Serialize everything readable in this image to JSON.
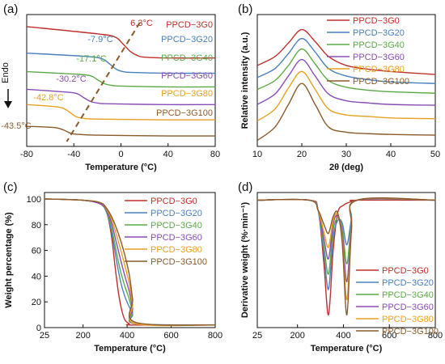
{
  "figure": {
    "colors": [
      "#c0302a",
      "#4a80c0",
      "#5caa46",
      "#8a4db5",
      "#e8a020",
      "#8b5a2b"
    ],
    "endo_label": "Endo"
  },
  "chart_data": [
    {
      "panel": "(a)",
      "type": "line",
      "xlabel": "Temperature (°C)",
      "ylabel": "",
      "xlim": [
        -80,
        80
      ],
      "xticks": [
        "-80",
        "-40",
        "0",
        "40",
        "80"
      ],
      "y_ticks_shown": false,
      "series": [
        {
          "name": "PPCD−3G0",
          "x": [
            -80,
            -20,
            -5,
            2,
            8,
            14,
            20,
            40,
            80
          ],
          "y": [
            8.85,
            8.4,
            8.2,
            7.75,
            7.3,
            7.05,
            6.95,
            6.9,
            6.9
          ]
        },
        {
          "name": "PPCD−3G20",
          "x": [
            -80,
            -30,
            -16,
            -10,
            -4,
            2,
            10,
            40,
            80
          ],
          "y": [
            7.2,
            7.0,
            6.85,
            6.55,
            6.2,
            6.05,
            6.0,
            5.95,
            5.95
          ]
        },
        {
          "name": "PPCD−3G40",
          "x": [
            -80,
            -40,
            -26,
            -20,
            -14,
            -8,
            0,
            40,
            80
          ],
          "y": [
            6.05,
            5.9,
            5.8,
            5.55,
            5.3,
            5.2,
            5.15,
            5.1,
            5.1
          ]
        },
        {
          "name": "PPCD−3G60",
          "x": [
            -80,
            -50,
            -38,
            -32,
            -26,
            -20,
            -10,
            40,
            80
          ],
          "y": [
            4.95,
            4.8,
            4.7,
            4.45,
            4.2,
            4.1,
            4.05,
            4.0,
            4.0
          ]
        },
        {
          "name": "PPCD−3G80",
          "x": [
            -80,
            -60,
            -50,
            -44,
            -38,
            -32,
            -20,
            40,
            80
          ],
          "y": [
            4.0,
            3.9,
            3.8,
            3.55,
            3.25,
            3.15,
            3.1,
            3.05,
            3.05
          ]
        },
        {
          "name": "PPCD−3G100",
          "x": [
            -80,
            -62,
            -54,
            -48,
            -42,
            -36,
            -20,
            40,
            80
          ],
          "y": [
            2.65,
            2.6,
            2.55,
            2.4,
            2.2,
            2.15,
            2.1,
            2.05,
            2.05
          ]
        }
      ],
      "annotations": [
        "6.3°C",
        "-7.9°C",
        "-17.1°C",
        "-30.2°C",
        "-42.8°C",
        "-43.5°C"
      ],
      "legend_placement": "inline-right"
    },
    {
      "panel": "(b)",
      "type": "line",
      "xlabel": "2θ (deg)",
      "ylabel": "Relative intensity (a.u.)",
      "xlim": [
        10,
        50
      ],
      "xticks": [
        "10",
        "20",
        "30",
        "40",
        "50"
      ],
      "y_ticks_shown": false,
      "series": [
        {
          "name": "PPCD−3G0",
          "x": [
            10,
            14,
            17,
            20,
            23,
            26,
            30,
            35,
            40,
            50
          ],
          "y": [
            7.6,
            8.2,
            9.1,
            10.0,
            9.2,
            8.2,
            7.6,
            7.35,
            7.2,
            7.0
          ]
        },
        {
          "name": "PPCD−3G20",
          "x": [
            10,
            14,
            17,
            20,
            23,
            26,
            30,
            35,
            40,
            50
          ],
          "y": [
            6.8,
            7.4,
            8.4,
            9.4,
            8.5,
            7.4,
            6.9,
            6.65,
            6.5,
            6.4
          ]
        },
        {
          "name": "PPCD−3G40",
          "x": [
            10,
            14,
            17,
            20,
            23,
            26,
            30,
            35,
            40,
            50
          ],
          "y": [
            6.0,
            6.6,
            7.6,
            8.7,
            7.7,
            6.6,
            6.15,
            5.95,
            5.85,
            5.75
          ]
        },
        {
          "name": "PPCD−3G60",
          "x": [
            10,
            14,
            17,
            20,
            23,
            26,
            30,
            35,
            40,
            50
          ],
          "y": [
            5.0,
            5.7,
            6.9,
            8.0,
            6.9,
            5.7,
            5.25,
            5.1,
            5.0,
            4.95
          ]
        },
        {
          "name": "PPCD−3G80",
          "x": [
            10,
            14,
            17,
            20,
            23,
            26,
            30,
            35,
            40,
            50
          ],
          "y": [
            3.9,
            4.7,
            6.1,
            7.2,
            6.0,
            4.7,
            4.3,
            4.2,
            4.1,
            4.05
          ]
        },
        {
          "name": "PPCD−3G100",
          "x": [
            10,
            14,
            17,
            20,
            23,
            26,
            30,
            35,
            40,
            50
          ],
          "y": [
            2.6,
            3.5,
            5.0,
            6.4,
            5.0,
            3.5,
            3.15,
            3.05,
            3.0,
            2.95
          ]
        }
      ],
      "legend_placement": "top-right"
    },
    {
      "panel": "(c)",
      "type": "line",
      "xlabel": "Temperature (°C)",
      "ylabel": "Weight percentage (%)",
      "xlim": [
        25,
        800
      ],
      "ylim": [
        0,
        100
      ],
      "xticks": [
        "25",
        "200",
        "400",
        "600",
        "800"
      ],
      "yticks": [
        "0",
        "20",
        "40",
        "60",
        "80",
        "100"
      ],
      "series": [
        {
          "name": "PPCD−3G0",
          "x": [
            25,
            200,
            280,
            310,
            330,
            345,
            360,
            375,
            390,
            410,
            430,
            800
          ],
          "y": [
            100,
            99,
            96,
            88,
            70,
            48,
            28,
            14,
            6,
            3,
            2,
            2
          ]
        },
        {
          "name": "PPCD−3G20",
          "x": [
            25,
            200,
            280,
            310,
            330,
            350,
            370,
            390,
            410,
            425,
            440,
            800
          ],
          "y": [
            100,
            99,
            96,
            88,
            74,
            54,
            36,
            24,
            16,
            10,
            3,
            2
          ]
        },
        {
          "name": "PPCD−3G40",
          "x": [
            25,
            200,
            280,
            310,
            330,
            350,
            370,
            390,
            410,
            425,
            440,
            800
          ],
          "y": [
            100,
            99,
            96,
            89,
            77,
            60,
            44,
            32,
            22,
            12,
            3,
            2
          ]
        },
        {
          "name": "PPCD−3G60",
          "x": [
            25,
            200,
            280,
            310,
            330,
            350,
            370,
            390,
            410,
            425,
            440,
            800
          ],
          "y": [
            100,
            99,
            96,
            90,
            81,
            67,
            53,
            40,
            28,
            15,
            3,
            2
          ]
        },
        {
          "name": "PPCD−3G80",
          "x": [
            25,
            200,
            280,
            310,
            330,
            350,
            370,
            390,
            410,
            425,
            440,
            800
          ],
          "y": [
            100,
            99,
            97,
            91,
            84,
            73,
            61,
            48,
            34,
            18,
            3,
            2
          ]
        },
        {
          "name": "PPCD−3G100",
          "x": [
            25,
            200,
            280,
            310,
            330,
            350,
            370,
            390,
            410,
            425,
            440,
            800
          ],
          "y": [
            100,
            99,
            97,
            92,
            86,
            78,
            68,
            56,
            41,
            22,
            4,
            2
          ]
        }
      ],
      "legend_placement": "top-right"
    },
    {
      "panel": "(d)",
      "type": "line",
      "xlabel": "Temperature (°C)",
      "ylabel": "Derivative weight (%·min⁻¹)",
      "xlim": [
        25,
        800
      ],
      "xticks": [
        "25",
        "200",
        "400",
        "600",
        "800"
      ],
      "y_ticks_shown": false,
      "series": [
        {
          "name": "PPCD−3G0",
          "x": [
            25,
            250,
            290,
            315,
            335,
            355,
            375,
            400,
            420,
            440,
            460,
            800
          ],
          "y": [
            0,
            0,
            -0.8,
            -5.0,
            -9.0,
            -4.0,
            -1.0,
            -0.4,
            -0.2,
            -0.1,
            0,
            0
          ]
        },
        {
          "name": "PPCD−3G20",
          "x": [
            25,
            250,
            290,
            315,
            335,
            355,
            375,
            395,
            415,
            435,
            460,
            800
          ],
          "y": [
            0,
            0,
            -0.8,
            -4.2,
            -7.0,
            -3.0,
            -1.6,
            -1.8,
            -3.5,
            -1.5,
            0,
            0
          ]
        },
        {
          "name": "PPCD−3G40",
          "x": [
            25,
            250,
            290,
            315,
            335,
            355,
            375,
            395,
            415,
            435,
            460,
            800
          ],
          "y": [
            0,
            0,
            -0.8,
            -3.6,
            -5.8,
            -2.4,
            -1.4,
            -2.2,
            -5.0,
            -1.8,
            0,
            0
          ]
        },
        {
          "name": "PPCD−3G60",
          "x": [
            25,
            250,
            290,
            315,
            335,
            355,
            375,
            395,
            415,
            435,
            460,
            800
          ],
          "y": [
            0,
            0,
            -0.8,
            -3.0,
            -4.6,
            -1.9,
            -1.2,
            -2.6,
            -6.4,
            -2.0,
            0,
            0
          ]
        },
        {
          "name": "PPCD−3G80",
          "x": [
            25,
            250,
            290,
            315,
            335,
            355,
            375,
            395,
            415,
            435,
            460,
            800
          ],
          "y": [
            0,
            0,
            -0.8,
            -2.5,
            -3.7,
            -1.6,
            -1.1,
            -3.0,
            -7.8,
            -2.2,
            0,
            0
          ]
        },
        {
          "name": "PPCD−3G100",
          "x": [
            25,
            250,
            290,
            315,
            335,
            355,
            375,
            395,
            415,
            435,
            460,
            800
          ],
          "y": [
            0,
            0,
            -0.8,
            -1.9,
            -2.6,
            -1.3,
            -1.0,
            -3.4,
            -9.0,
            -2.4,
            0,
            0
          ]
        }
      ],
      "ylim": [
        -10,
        0.5
      ],
      "legend_placement": "bottom-right"
    }
  ]
}
